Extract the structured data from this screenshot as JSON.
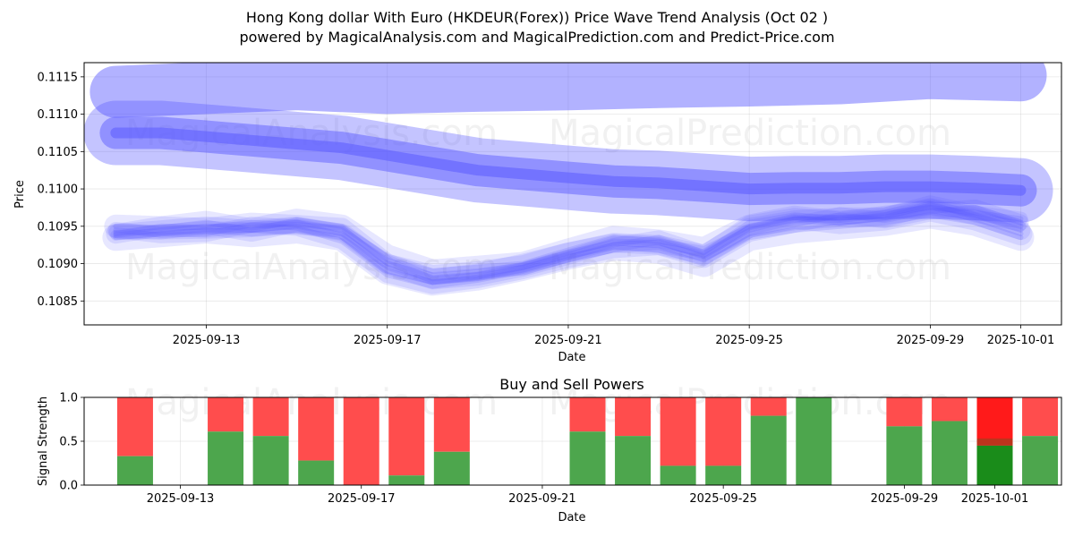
{
  "header": {
    "title": "Hong Kong dollar With Euro (HKDEUR(Forex)) Price Wave Trend Analysis (Oct 02 )",
    "subtitle": "powered by MagicalAnalysis.com and MagicalPrediction.com and Predict-Price.com"
  },
  "watermarks": [
    "MagicalAnalysis.com",
    "MagicalPrediction.com"
  ],
  "colors": {
    "band": "#5555ff",
    "buy": "#4da64d",
    "sell": "#ff4d4d",
    "buy_strong": "#1a8c1a",
    "sell_strong": "#ff1a1a"
  },
  "chart_data": [
    {
      "type": "line",
      "title": "",
      "xlabel": "Date",
      "ylabel": "Price",
      "x_ticks": [
        "2025-09-13",
        "2025-09-17",
        "2025-09-21",
        "2025-09-25",
        "2025-09-29",
        "2025-10-01"
      ],
      "x_tick_days": [
        2,
        6,
        10,
        14,
        18,
        20
      ],
      "y_ticks": [
        0.1085,
        0.109,
        0.1095,
        0.11,
        0.1105,
        0.111,
        0.1115
      ],
      "xlim": [
        -0.7,
        20.9
      ],
      "ylim": [
        0.10818,
        0.11169
      ],
      "grid": true,
      "series": [
        {
          "name": "upper wave",
          "kind": "wide",
          "x": [
            0,
            2,
            4,
            6,
            8,
            10,
            12,
            14,
            16,
            18,
            20
          ],
          "y": [
            0.1113,
            0.11135,
            0.1114,
            0.11135,
            0.11138,
            0.1114,
            0.11143,
            0.11145,
            0.11148,
            0.11155,
            0.11152
          ]
        },
        {
          "name": "main trend",
          "kind": "main",
          "x": [
            0,
            1,
            2,
            3,
            4,
            5,
            6,
            7,
            8,
            9,
            10,
            11,
            12,
            13,
            14,
            15,
            16,
            17,
            18,
            19,
            20
          ],
          "y": [
            0.11075,
            0.11075,
            0.1107,
            0.11065,
            0.1106,
            0.11055,
            0.11045,
            0.11035,
            0.11025,
            0.1102,
            0.11015,
            0.1101,
            0.11008,
            0.11004,
            0.11,
            0.11001,
            0.11001,
            0.11003,
            0.11003,
            0.11001,
            0.10998
          ]
        },
        {
          "name": "wave 1",
          "kind": "thin",
          "x": [
            0,
            1,
            2,
            3,
            4,
            5,
            6,
            7,
            8,
            9,
            10,
            11,
            12,
            13,
            14,
            15,
            16,
            17,
            18,
            19,
            20
          ],
          "y": [
            0.10942,
            0.10942,
            0.10943,
            0.10945,
            0.1095,
            0.1094,
            0.10895,
            0.10875,
            0.1088,
            0.10892,
            0.10908,
            0.10925,
            0.10935,
            0.10915,
            0.10955,
            0.10965,
            0.1096,
            0.10968,
            0.10975,
            0.10968,
            0.1096
          ]
        },
        {
          "name": "wave 2",
          "kind": "thin",
          "x": [
            0,
            1,
            2,
            3,
            4,
            5,
            6,
            7,
            8,
            9,
            10,
            11,
            12,
            13,
            14,
            15,
            16,
            17,
            18,
            19,
            20
          ],
          "y": [
            0.10938,
            0.10945,
            0.1095,
            0.10948,
            0.10955,
            0.10945,
            0.10905,
            0.1088,
            0.10885,
            0.10895,
            0.10912,
            0.1093,
            0.10928,
            0.1091,
            0.10945,
            0.1096,
            0.10958,
            0.10965,
            0.1098,
            0.10962,
            0.1095
          ]
        },
        {
          "name": "wave 3",
          "kind": "thin",
          "x": [
            0,
            1,
            2,
            3,
            4,
            5,
            6,
            7,
            8,
            9,
            10,
            11,
            12,
            13,
            14,
            15,
            16,
            17,
            18,
            19,
            20
          ],
          "y": [
            0.10945,
            0.10938,
            0.1094,
            0.10952,
            0.10948,
            0.1093,
            0.10885,
            0.1087,
            0.10878,
            0.1089,
            0.10905,
            0.10918,
            0.10922,
            0.10905,
            0.1094,
            0.10952,
            0.10965,
            0.10958,
            0.1097,
            0.10975,
            0.10955
          ]
        },
        {
          "name": "wave 4",
          "kind": "thin",
          "x": [
            0,
            1,
            2,
            3,
            4,
            5,
            6,
            7,
            8,
            9,
            10,
            11,
            12,
            13,
            14,
            15,
            16,
            17,
            18,
            19,
            20
          ],
          "y": [
            0.1095,
            0.10948,
            0.10955,
            0.10945,
            0.10958,
            0.1095,
            0.1091,
            0.1089,
            0.10895,
            0.109,
            0.10918,
            0.10935,
            0.1093,
            0.1092,
            0.1095,
            0.10962,
            0.10955,
            0.1096,
            0.10972,
            0.1096,
            0.1094
          ]
        },
        {
          "name": "wave 5",
          "kind": "thin",
          "x": [
            0,
            1,
            2,
            3,
            4,
            5,
            6,
            7,
            8,
            9,
            10,
            11,
            12,
            13,
            14,
            15,
            16,
            17,
            18,
            19,
            20
          ],
          "y": [
            0.10935,
            0.1094,
            0.10945,
            0.1094,
            0.10945,
            0.10935,
            0.1089,
            0.10875,
            0.10882,
            0.10895,
            0.1091,
            0.10922,
            0.10918,
            0.109,
            0.10935,
            0.10945,
            0.1095,
            0.10955,
            0.10965,
            0.10955,
            0.10935
          ]
        },
        {
          "name": "wave 6",
          "kind": "thin",
          "x": [
            0,
            1,
            2,
            3,
            4,
            5,
            6,
            7,
            8,
            9,
            10,
            11,
            12,
            13,
            14,
            15,
            16,
            17,
            18,
            19,
            20
          ],
          "y": [
            0.1094,
            0.1095,
            0.10948,
            0.10955,
            0.10952,
            0.10948,
            0.109,
            0.10885,
            0.1089,
            0.10898,
            0.10915,
            0.10928,
            0.10925,
            0.10912,
            0.10948,
            0.10958,
            0.10962,
            0.10962,
            0.10978,
            0.10965,
            0.10945
          ]
        }
      ]
    },
    {
      "type": "bar",
      "title": "Buy and Sell Powers",
      "xlabel": "Date",
      "ylabel": "Signal Strength",
      "x_ticks": [
        "2025-09-13",
        "2025-09-17",
        "2025-09-21",
        "2025-09-25",
        "2025-09-29",
        "2025-10-01"
      ],
      "x_tick_days": [
        2,
        6,
        10,
        14,
        18,
        20
      ],
      "y_ticks": [
        "0.0",
        "0.5",
        "1.0"
      ],
      "xlim": [
        -0.7,
        20.9
      ],
      "ylim": [
        0,
        1
      ],
      "days": [
        1,
        3,
        4,
        5,
        6,
        7,
        8,
        11,
        12,
        13,
        14,
        15,
        16,
        18,
        19,
        20,
        21
      ],
      "buy": [
        0.33,
        0.61,
        0.56,
        0.28,
        0.0,
        0.11,
        0.38,
        0.61,
        0.56,
        0.22,
        0.22,
        0.79,
        1.0,
        0.67,
        0.73,
        0.45,
        0.56
      ],
      "strong": [
        false,
        false,
        false,
        false,
        false,
        false,
        false,
        false,
        false,
        false,
        false,
        false,
        false,
        false,
        false,
        true,
        false
      ]
    }
  ]
}
